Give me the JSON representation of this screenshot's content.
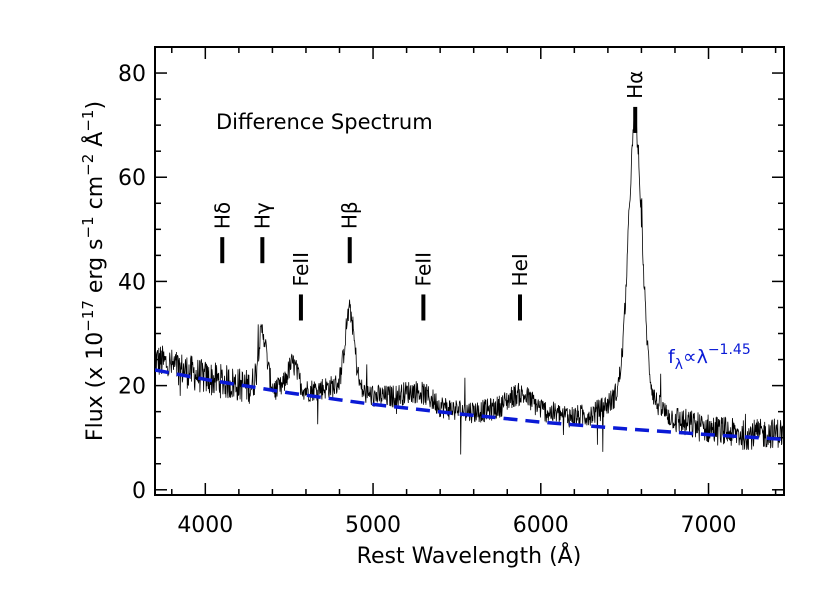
{
  "chart_data": {
    "type": "line",
    "title": "Difference Spectrum",
    "xlabel": "Rest Wavelength (Å)",
    "ylabel": {
      "prefix": "Flux (x 10",
      "exp1": "−17",
      "mid1": " erg s",
      "exp2": "−1",
      "mid2": " cm",
      "exp3": "−2",
      "mid3": " Å",
      "exp4": "−1",
      "suffix": ")"
    },
    "xlim": [
      3700,
      7450
    ],
    "ylim": [
      -1,
      85
    ],
    "x_ticks": [
      4000,
      5000,
      6000,
      7000
    ],
    "y_ticks": [
      0,
      20,
      40,
      60,
      80
    ],
    "x_minor_step": 200,
    "y_minor_step": 5,
    "spectrum": {
      "color": "#000000",
      "continuum_anchors": [
        [
          3700,
          25
        ],
        [
          4000,
          21.5
        ],
        [
          4300,
          19.5
        ],
        [
          4600,
          19
        ],
        [
          4800,
          20
        ],
        [
          5000,
          18
        ],
        [
          5200,
          17.5
        ],
        [
          5400,
          15.5
        ],
        [
          5600,
          15
        ],
        [
          5800,
          15.5
        ],
        [
          6000,
          15
        ],
        [
          6200,
          14
        ],
        [
          6400,
          14.5
        ],
        [
          6800,
          13
        ],
        [
          7200,
          10.5
        ],
        [
          7450,
          11
        ]
      ],
      "emission_lines": [
        {
          "center": 4340,
          "amp": 11,
          "sigma": 25
        },
        {
          "center": 4520,
          "amp": 5,
          "sigma": 30
        },
        {
          "center": 4861,
          "amp": 15,
          "sigma": 28
        },
        {
          "center": 5280,
          "amp": 2,
          "sigma": 80
        },
        {
          "center": 5876,
          "amp": 3,
          "sigma": 70
        },
        {
          "center": 6563,
          "amp": 50,
          "sigma": 40
        },
        {
          "center": 6563,
          "amp": 6,
          "sigma": 110
        }
      ],
      "noise_amplitude": 4.5,
      "sample_step": 2.5
    },
    "fit": {
      "label_base": "f",
      "label_sub": "λ",
      "label_rel": "∝λ",
      "label_exp": "−1.45",
      "color": "#0a1ad6",
      "x": [
        3700,
        4000,
        4500,
        5000,
        5500,
        6000,
        6500,
        7000,
        7450
      ],
      "y": [
        23,
        21.2,
        18.6,
        16.4,
        14.6,
        13.0,
        11.7,
        10.6,
        9.7
      ]
    },
    "line_markers": [
      {
        "label": "Hδ",
        "x": 4101,
        "y_low": 43.5,
        "y_high": 48.5
      },
      {
        "label": "Hγ",
        "x": 4340,
        "y_low": 43.5,
        "y_high": 48.5
      },
      {
        "label": "FeII",
        "x": 4570,
        "y_low": 32.5,
        "y_high": 37.5
      },
      {
        "label": "Hβ",
        "x": 4861,
        "y_low": 43.5,
        "y_high": 48.5
      },
      {
        "label": "FeII",
        "x": 5300,
        "y_low": 32.5,
        "y_high": 37.5
      },
      {
        "label": "HeI",
        "x": 5876,
        "y_low": 32.5,
        "y_high": 37.5
      },
      {
        "label": "Hα",
        "x": 6563,
        "y_low": 68.5,
        "y_high": 73.5
      }
    ]
  }
}
